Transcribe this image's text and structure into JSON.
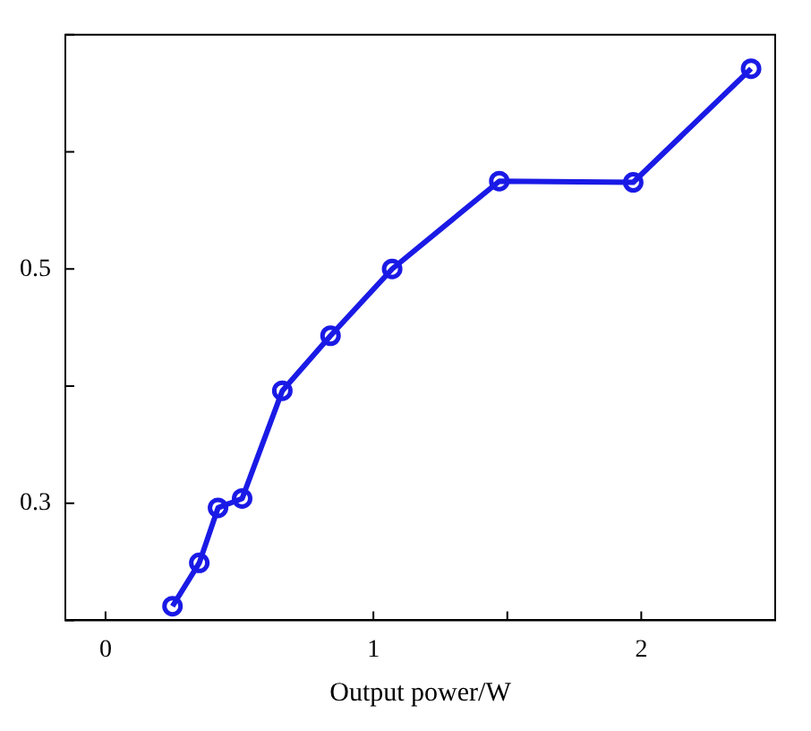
{
  "chart_data": {
    "type": "line",
    "xlabel": "Output power/W",
    "x": [
      0.25,
      0.35,
      0.42,
      0.51,
      0.66,
      0.84,
      1.07,
      1.47,
      1.97,
      2.41
    ],
    "series": [
      {
        "color": "#1a1ae6",
        "values": [
          0.212,
          0.249,
          0.296,
          0.304,
          0.396,
          0.443,
          0.5,
          0.575,
          0.574,
          0.671
        ]
      }
    ],
    "xlim": [
      -0.15,
      2.5
    ],
    "xticks": [
      0,
      1,
      {
        "value": 1.5,
        "label": null
      },
      2,
      {
        "value": 2.5,
        "label": null
      }
    ],
    "ylim": [
      0.2,
      0.7
    ],
    "yticks": [
      {
        "value": 0.2,
        "label": null
      },
      0.3,
      {
        "value": 0.4,
        "label": null
      },
      0.5,
      {
        "value": 0.6,
        "label": null
      },
      {
        "value": 0.7,
        "label": null
      }
    ],
    "grid": false,
    "legend": false,
    "marker": "circle",
    "line_style": "solid"
  }
}
